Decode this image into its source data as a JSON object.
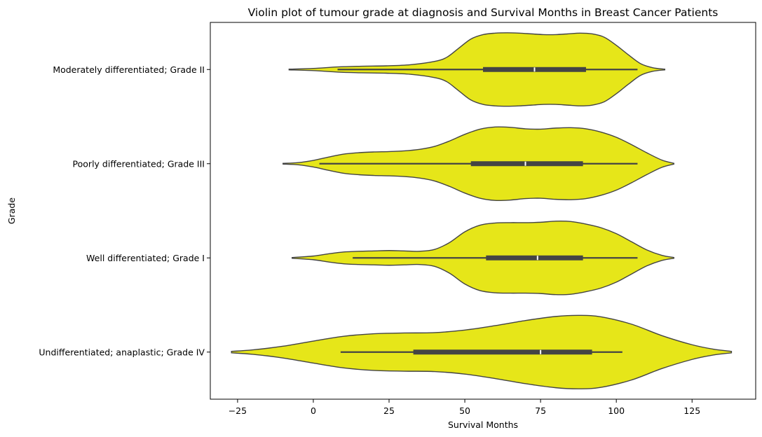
{
  "chart_data": {
    "type": "violin",
    "title": "Violin plot of tumour grade at diagnosis and Survival Months in Breast Cancer Patients",
    "xlabel": "Survival Months",
    "ylabel": "Grade",
    "xlim": [
      -34,
      146
    ],
    "xticks": [
      -25,
      0,
      25,
      50,
      75,
      100,
      125
    ],
    "fill_color": "#e6e619",
    "grid": false,
    "legend": "none",
    "categories": [
      "Moderately differentiated; Grade II",
      "Poorly differentiated; Grade III",
      "Well differentiated; Grade I",
      "Undifferentiated; anaplastic; Grade IV"
    ],
    "violins": [
      {
        "category": "Moderately differentiated; Grade II",
        "min": 8,
        "q1": 56,
        "median": 73,
        "q3": 90,
        "max": 107,
        "kde_range": [
          -8,
          116
        ],
        "density_x": [
          -8,
          0,
          8,
          16,
          24,
          32,
          40,
          44,
          48,
          52,
          56,
          60,
          64,
          68,
          72,
          76,
          80,
          84,
          88,
          92,
          96,
          100,
          104,
          108,
          112,
          116
        ],
        "density_w": [
          0.01,
          0.03,
          0.07,
          0.09,
          0.1,
          0.13,
          0.22,
          0.33,
          0.58,
          0.83,
          0.95,
          0.99,
          1.0,
          0.99,
          0.97,
          0.95,
          0.95,
          0.97,
          0.99,
          0.97,
          0.88,
          0.66,
          0.4,
          0.16,
          0.05,
          0.01
        ]
      },
      {
        "category": "Poorly differentiated; Grade III",
        "min": 2,
        "q1": 52,
        "median": 70,
        "q3": 89,
        "max": 107,
        "kde_range": [
          -10,
          119
        ],
        "density_x": [
          -10,
          -5,
          0,
          5,
          10,
          15,
          20,
          25,
          30,
          35,
          40,
          45,
          50,
          55,
          60,
          65,
          70,
          75,
          80,
          85,
          90,
          95,
          100,
          105,
          110,
          115,
          119
        ],
        "density_w": [
          0.01,
          0.03,
          0.09,
          0.18,
          0.26,
          0.3,
          0.32,
          0.33,
          0.35,
          0.39,
          0.47,
          0.62,
          0.8,
          0.94,
          1.0,
          0.99,
          0.95,
          0.94,
          0.97,
          0.98,
          0.95,
          0.86,
          0.72,
          0.52,
          0.3,
          0.1,
          0.01
        ]
      },
      {
        "category": "Well differentiated; Grade I",
        "min": 13,
        "q1": 57,
        "median": 74,
        "q3": 89,
        "max": 107,
        "kde_range": [
          -7,
          119
        ],
        "density_x": [
          -7,
          0,
          5,
          10,
          15,
          20,
          25,
          30,
          35,
          40,
          45,
          50,
          55,
          60,
          65,
          70,
          75,
          80,
          85,
          90,
          95,
          100,
          105,
          110,
          115,
          119
        ],
        "density_w": [
          0.01,
          0.05,
          0.11,
          0.16,
          0.18,
          0.19,
          0.2,
          0.19,
          0.18,
          0.23,
          0.42,
          0.71,
          0.89,
          0.95,
          0.96,
          0.96,
          0.97,
          1.0,
          0.99,
          0.92,
          0.82,
          0.66,
          0.44,
          0.22,
          0.07,
          0.01
        ]
      },
      {
        "category": "Undifferentiated; anaplastic; Grade IV",
        "min": 9,
        "q1": 33,
        "median": 75,
        "q3": 92,
        "max": 102,
        "kde_range": [
          -27,
          138
        ],
        "density_x": [
          -27,
          -20,
          -10,
          0,
          10,
          20,
          30,
          40,
          50,
          60,
          70,
          80,
          88,
          95,
          105,
          115,
          125,
          132,
          138
        ],
        "density_w": [
          0.02,
          0.06,
          0.16,
          0.3,
          0.43,
          0.5,
          0.52,
          0.53,
          0.6,
          0.72,
          0.86,
          0.97,
          1.0,
          0.96,
          0.76,
          0.45,
          0.2,
          0.08,
          0.02
        ]
      }
    ]
  }
}
